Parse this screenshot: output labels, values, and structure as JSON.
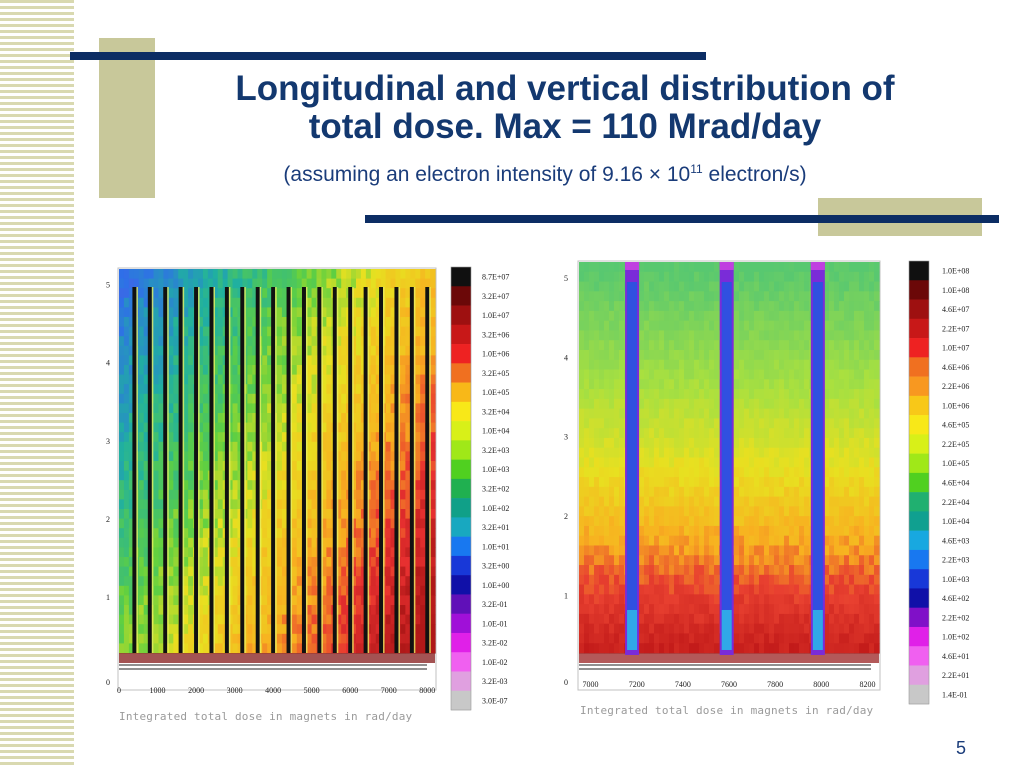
{
  "slide": {
    "title_line1": "Longitudinal and vertical distribution of",
    "title_line2": "total dose. Max = 110 Mrad/day",
    "subtitle_pre": "(assuming an electron intensity of 9.16 × 10",
    "subtitle_exp": "11",
    "subtitle_post": " electron/s)",
    "slide_number": "5"
  },
  "colors": {
    "navy": "#0c2d64",
    "olive": "#c8c89a",
    "title": "#13386f"
  },
  "chart_data": [
    {
      "type": "heatmap",
      "xlabel": "Integrated total dose in magnets in rad/day",
      "xlim": [
        0,
        8200
      ],
      "ylim": [
        0,
        5.2
      ],
      "x_ticks": [
        0,
        1000,
        2000,
        3000,
        4000,
        5000,
        6000,
        7000,
        8000
      ],
      "y_ticks": [
        0,
        1,
        2,
        3,
        4,
        5
      ],
      "magnet_positions": [
        400,
        800,
        1200,
        1600,
        2000,
        2400,
        2800,
        3200,
        3600,
        4000,
        4400,
        4800,
        5200,
        5600,
        6000,
        6400,
        6800,
        7200,
        7600,
        8000
      ],
      "colorbar": {
        "labels": [
          "8.7E+07",
          "3.2E+07",
          "1.0E+07",
          "3.2E+06",
          "1.0E+06",
          "3.2E+05",
          "1.0E+05",
          "3.2E+04",
          "1.0E+04",
          "3.2E+03",
          "1.0E+03",
          "3.2E+02",
          "1.0E+02",
          "3.2E+01",
          "1.0E+01",
          "3.2E+00",
          "1.0E+00",
          "3.2E-01",
          "1.0E-01",
          "3.2E-02",
          "1.0E-02",
          "3.2E-03",
          "3.0E-07"
        ],
        "colors": [
          "#101010",
          "#6b0808",
          "#9e1010",
          "#c81818",
          "#ee2222",
          "#f07020",
          "#f8b818",
          "#f8e818",
          "#d8f018",
          "#a0e818",
          "#50d020",
          "#20b050",
          "#10a088",
          "#18a8c0",
          "#1878f0",
          "#1838d8",
          "#1010a8",
          "#6010b8",
          "#a010d8",
          "#e020e8",
          "#f060f0",
          "#e0a0e0",
          "#c8c8c8"
        ]
      }
    },
    {
      "type": "heatmap",
      "xlabel": "Integrated total dose in magnets in rad/day",
      "xlim": [
        6950,
        8250
      ],
      "ylim": [
        0,
        5.2
      ],
      "x_ticks": [
        7000,
        7200,
        7400,
        7600,
        7800,
        8000,
        8200
      ],
      "y_ticks": [
        0,
        1,
        2,
        3,
        4,
        5
      ],
      "magnet_positions": [
        7180,
        7590,
        7985
      ],
      "colorbar": {
        "labels": [
          "1.0E+08",
          "1.0E+08",
          "4.6E+07",
          "2.2E+07",
          "1.0E+07",
          "4.6E+06",
          "2.2E+06",
          "1.0E+06",
          "4.6E+05",
          "2.2E+05",
          "1.0E+05",
          "4.6E+04",
          "2.2E+04",
          "1.0E+04",
          "4.6E+03",
          "2.2E+03",
          "1.0E+03",
          "4.6E+02",
          "2.2E+02",
          "1.0E+02",
          "4.6E+01",
          "2.2E+01",
          "1.4E-01"
        ],
        "colors": [
          "#101010",
          "#6b0808",
          "#9e1010",
          "#c81818",
          "#ee2222",
          "#f07020",
          "#f89820",
          "#f8c818",
          "#f8e818",
          "#d8f018",
          "#a0e818",
          "#50d020",
          "#20b070",
          "#10a090",
          "#18a8e0",
          "#1878f0",
          "#1838d8",
          "#1010a8",
          "#8010c8",
          "#e020e8",
          "#f060f0",
          "#e0a0e0",
          "#c8c8c8"
        ]
      }
    }
  ]
}
